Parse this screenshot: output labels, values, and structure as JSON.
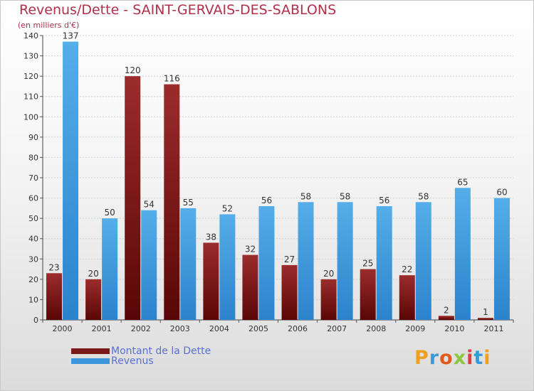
{
  "title": "Revenus/Dette - SAINT-GERVAIS-DES-SABLONS",
  "subtitle": "(en milliers d'€)",
  "logo_text": "Proxiti",
  "colors": {
    "dette": "#7a1a1a",
    "revenus": "#3d97dc",
    "axis_text": "#333333",
    "grid": "#cfcfcf",
    "title": "#b0304a",
    "legend_text": "#5a6fd6"
  },
  "chart_data": {
    "type": "bar",
    "title": "Revenus/Dette - SAINT-GERVAIS-DES-SABLONS",
    "ylabel": "(en milliers d'€)",
    "ylim": [
      0,
      140
    ],
    "yticks": [
      0,
      10,
      20,
      30,
      40,
      50,
      60,
      70,
      80,
      90,
      100,
      110,
      120,
      130,
      140
    ],
    "grid": true,
    "legend_position": "bottom-left",
    "categories": [
      "2000",
      "2001",
      "2002",
      "2003",
      "2004",
      "2005",
      "2006",
      "2007",
      "2008",
      "2009",
      "2010",
      "2011"
    ],
    "series": [
      {
        "name": "Montant de la Dette",
        "values": [
          23,
          20,
          120,
          116,
          38,
          32,
          27,
          20,
          25,
          22,
          2,
          1
        ]
      },
      {
        "name": "Revenus",
        "values": [
          137,
          50,
          54,
          55,
          52,
          56,
          58,
          58,
          56,
          58,
          65,
          60
        ]
      }
    ]
  }
}
